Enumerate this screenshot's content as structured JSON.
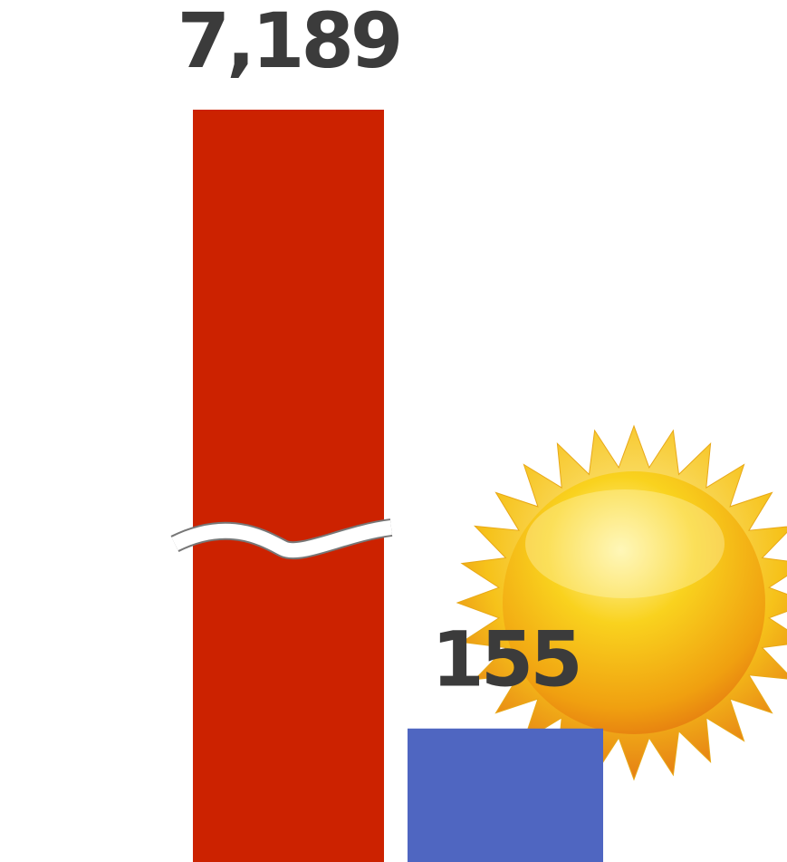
{
  "chart_data": {
    "type": "bar",
    "categories": [
      null,
      null
    ],
    "values": [
      7189,
      155
    ],
    "value_labels": [
      "7,189",
      "155"
    ],
    "colors": [
      "#cc2200",
      "#4f66c1"
    ]
  }
}
